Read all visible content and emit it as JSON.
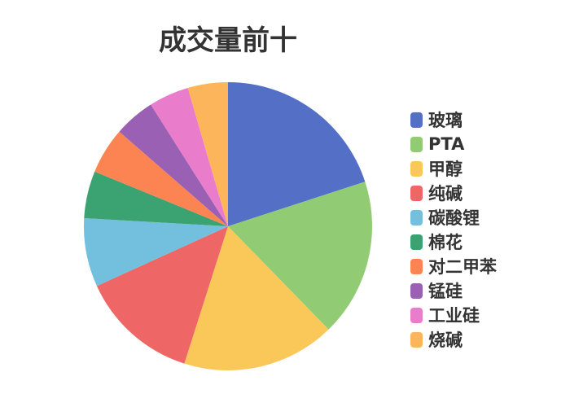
{
  "chart_data": {
    "type": "pie",
    "title": "成交量前十",
    "legend_position": "right",
    "start_angle": "top, clockwise",
    "categories": [
      "玻璃",
      "PTA",
      "甲醇",
      "纯碱",
      "碳酸锂",
      "棉花",
      "对二甲苯",
      "锰硅",
      "工业硅",
      "烧碱"
    ],
    "values": [
      20.0,
      17.7,
      17.2,
      13.3,
      7.7,
      5.3,
      5.2,
      4.6,
      4.5,
      4.5
    ],
    "colors": [
      "#5470c6",
      "#91cc75",
      "#fac858",
      "#ee6666",
      "#73c0de",
      "#3ba272",
      "#fc8452",
      "#9a60b4",
      "#ea7ccc",
      "#fdb55b"
    ]
  }
}
